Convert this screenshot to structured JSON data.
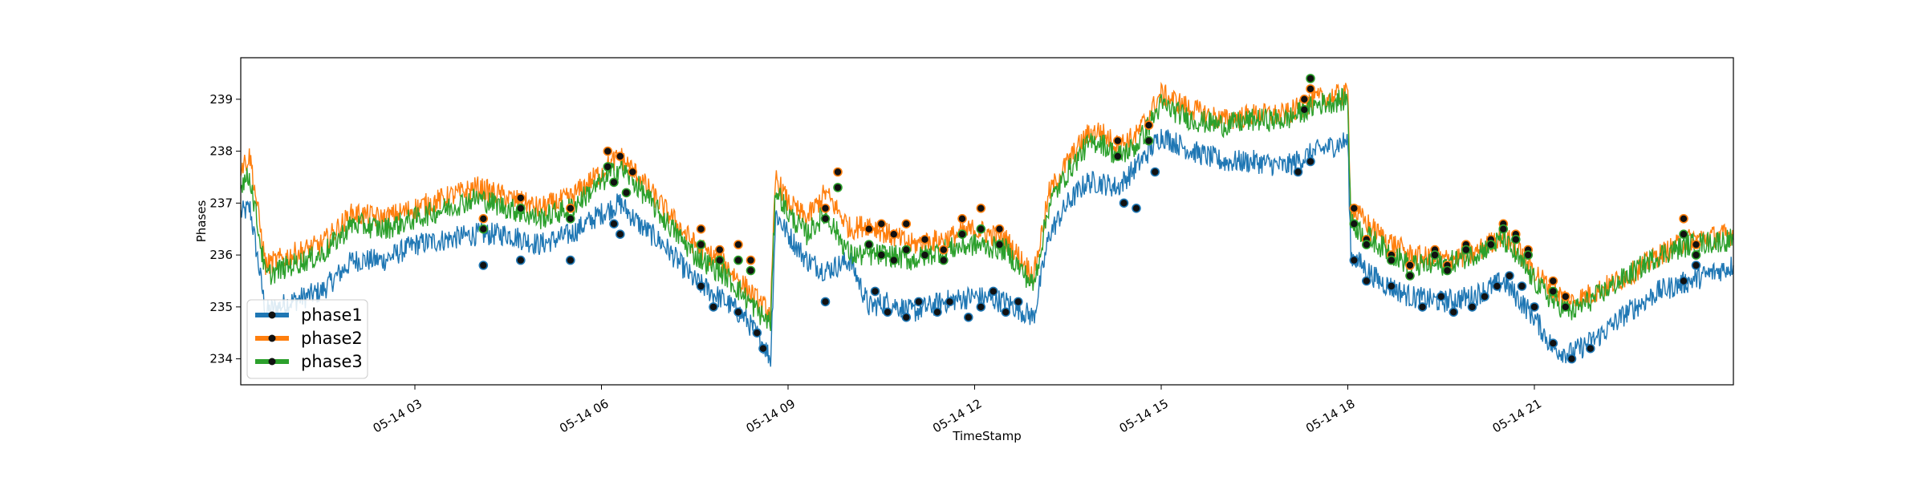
{
  "chart_data": {
    "type": "line",
    "xlabel": "TimeStamp",
    "ylabel": "Phases",
    "xlim": [
      0.2,
      24.2
    ],
    "ylim": [
      233.5,
      239.8
    ],
    "x_unit": "hour of 05-14",
    "x_ticks": [
      {
        "value": 3,
        "label": "05-14 03"
      },
      {
        "value": 6,
        "label": "05-14 06"
      },
      {
        "value": 9,
        "label": "05-14 09"
      },
      {
        "value": 12,
        "label": "05-14 12"
      },
      {
        "value": 15,
        "label": "05-14 15"
      },
      {
        "value": 18,
        "label": "05-14 18"
      },
      {
        "value": 21,
        "label": "05-14 21"
      }
    ],
    "y_ticks": [
      234,
      235,
      236,
      237,
      238,
      239
    ],
    "grid": false,
    "legend": {
      "position": "lower-left",
      "marker": "dot"
    },
    "series": [
      {
        "name": "phase1",
        "color": "#1f77b4",
        "points": [
          [
            0.2,
            236.8
          ],
          [
            0.35,
            236.9
          ],
          [
            0.6,
            234.9
          ],
          [
            1.0,
            235.1
          ],
          [
            1.5,
            235.3
          ],
          [
            2.0,
            235.9
          ],
          [
            2.5,
            235.9
          ],
          [
            3.0,
            236.2
          ],
          [
            3.5,
            236.3
          ],
          [
            4.0,
            236.4
          ],
          [
            4.5,
            236.4
          ],
          [
            5.0,
            236.2
          ],
          [
            5.5,
            236.4
          ],
          [
            6.0,
            236.8
          ],
          [
            6.3,
            237.0
          ],
          [
            6.6,
            236.6
          ],
          [
            7.0,
            236.2
          ],
          [
            7.5,
            235.5
          ],
          [
            8.0,
            235.1
          ],
          [
            8.3,
            234.8
          ],
          [
            8.6,
            234.3
          ],
          [
            8.72,
            234.0
          ],
          [
            8.8,
            236.8
          ],
          [
            9.0,
            236.4
          ],
          [
            9.3,
            235.9
          ],
          [
            9.6,
            235.7
          ],
          [
            10.0,
            235.9
          ],
          [
            10.3,
            235.0
          ],
          [
            10.6,
            235.1
          ],
          [
            11.0,
            234.9
          ],
          [
            11.5,
            235.1
          ],
          [
            12.0,
            235.2
          ],
          [
            12.5,
            235.1
          ],
          [
            12.95,
            234.8
          ],
          [
            13.2,
            236.4
          ],
          [
            13.5,
            237.0
          ],
          [
            13.8,
            237.4
          ],
          [
            14.0,
            237.4
          ],
          [
            14.3,
            237.3
          ],
          [
            14.6,
            237.7
          ],
          [
            15.0,
            238.3
          ],
          [
            15.5,
            238.0
          ],
          [
            16.0,
            237.8
          ],
          [
            16.5,
            237.8
          ],
          [
            17.0,
            237.7
          ],
          [
            17.5,
            238.0
          ],
          [
            18.0,
            238.2
          ],
          [
            18.05,
            236.0
          ],
          [
            18.5,
            235.5
          ],
          [
            19.0,
            235.2
          ],
          [
            19.5,
            235.1
          ],
          [
            20.0,
            235.2
          ],
          [
            20.5,
            235.5
          ],
          [
            21.0,
            234.8
          ],
          [
            21.3,
            234.2
          ],
          [
            21.6,
            234.1
          ],
          [
            22.0,
            234.4
          ],
          [
            22.5,
            234.9
          ],
          [
            23.0,
            235.3
          ],
          [
            23.5,
            235.5
          ],
          [
            24.2,
            235.8
          ]
        ]
      },
      {
        "name": "phase2",
        "color": "#ff7f0e",
        "points": [
          [
            0.2,
            237.7
          ],
          [
            0.35,
            237.9
          ],
          [
            0.6,
            235.8
          ],
          [
            1.0,
            236.0
          ],
          [
            1.5,
            236.2
          ],
          [
            2.0,
            236.8
          ],
          [
            2.5,
            236.7
          ],
          [
            3.0,
            236.9
          ],
          [
            3.5,
            237.1
          ],
          [
            4.0,
            237.3
          ],
          [
            4.5,
            237.1
          ],
          [
            5.0,
            236.9
          ],
          [
            5.5,
            237.1
          ],
          [
            6.0,
            237.6
          ],
          [
            6.3,
            237.9
          ],
          [
            6.6,
            237.5
          ],
          [
            7.0,
            236.9
          ],
          [
            7.5,
            236.2
          ],
          [
            8.0,
            235.8
          ],
          [
            8.3,
            235.4
          ],
          [
            8.6,
            235.0
          ],
          [
            8.72,
            234.9
          ],
          [
            8.8,
            237.5
          ],
          [
            9.0,
            237.0
          ],
          [
            9.3,
            236.7
          ],
          [
            9.6,
            237.2
          ],
          [
            10.0,
            236.5
          ],
          [
            10.3,
            236.6
          ],
          [
            10.6,
            236.4
          ],
          [
            11.0,
            236.2
          ],
          [
            11.5,
            236.3
          ],
          [
            12.0,
            236.5
          ],
          [
            12.5,
            236.3
          ],
          [
            12.95,
            235.6
          ],
          [
            13.2,
            237.2
          ],
          [
            13.5,
            237.8
          ],
          [
            13.8,
            238.3
          ],
          [
            14.0,
            238.4
          ],
          [
            14.3,
            238.1
          ],
          [
            14.6,
            238.3
          ],
          [
            15.0,
            239.1
          ],
          [
            15.5,
            238.8
          ],
          [
            16.0,
            238.6
          ],
          [
            16.5,
            238.7
          ],
          [
            17.0,
            238.7
          ],
          [
            17.5,
            239.0
          ],
          [
            18.0,
            239.1
          ],
          [
            18.05,
            236.9
          ],
          [
            18.5,
            236.4
          ],
          [
            19.0,
            236.0
          ],
          [
            19.5,
            235.9
          ],
          [
            20.0,
            236.0
          ],
          [
            20.5,
            236.4
          ],
          [
            21.0,
            235.7
          ],
          [
            21.3,
            235.3
          ],
          [
            21.6,
            235.1
          ],
          [
            22.0,
            235.3
          ],
          [
            22.5,
            235.6
          ],
          [
            23.0,
            236.0
          ],
          [
            23.5,
            236.3
          ],
          [
            24.2,
            236.4
          ]
        ]
      },
      {
        "name": "phase3",
        "color": "#2ca02c",
        "points": [
          [
            0.2,
            237.4
          ],
          [
            0.35,
            237.5
          ],
          [
            0.6,
            235.6
          ],
          [
            1.0,
            235.8
          ],
          [
            1.5,
            236.0
          ],
          [
            2.0,
            236.6
          ],
          [
            2.5,
            236.5
          ],
          [
            3.0,
            236.7
          ],
          [
            3.5,
            236.9
          ],
          [
            4.0,
            237.1
          ],
          [
            4.5,
            236.9
          ],
          [
            5.0,
            236.7
          ],
          [
            5.5,
            236.9
          ],
          [
            6.0,
            237.4
          ],
          [
            6.3,
            237.7
          ],
          [
            6.6,
            237.3
          ],
          [
            7.0,
            236.7
          ],
          [
            7.5,
            236.0
          ],
          [
            8.0,
            235.6
          ],
          [
            8.3,
            235.2
          ],
          [
            8.6,
            234.8
          ],
          [
            8.72,
            234.7
          ],
          [
            8.8,
            237.3
          ],
          [
            9.0,
            236.8
          ],
          [
            9.3,
            236.4
          ],
          [
            9.6,
            236.8
          ],
          [
            10.0,
            236.0
          ],
          [
            10.3,
            236.0
          ],
          [
            10.6,
            236.0
          ],
          [
            11.0,
            235.9
          ],
          [
            11.5,
            236.1
          ],
          [
            12.0,
            236.2
          ],
          [
            12.5,
            236.1
          ],
          [
            12.95,
            235.4
          ],
          [
            13.2,
            237.0
          ],
          [
            13.5,
            237.6
          ],
          [
            13.8,
            238.1
          ],
          [
            14.0,
            238.2
          ],
          [
            14.3,
            237.9
          ],
          [
            14.6,
            238.1
          ],
          [
            15.0,
            238.9
          ],
          [
            15.5,
            238.6
          ],
          [
            16.0,
            238.5
          ],
          [
            16.5,
            238.6
          ],
          [
            17.0,
            238.6
          ],
          [
            17.5,
            238.9
          ],
          [
            18.0,
            239.0
          ],
          [
            18.05,
            236.6
          ],
          [
            18.5,
            236.2
          ],
          [
            19.0,
            235.8
          ],
          [
            19.5,
            235.8
          ],
          [
            20.0,
            236.0
          ],
          [
            20.5,
            236.3
          ],
          [
            21.0,
            235.5
          ],
          [
            21.3,
            235.1
          ],
          [
            21.6,
            234.9
          ],
          [
            22.0,
            235.2
          ],
          [
            22.5,
            235.6
          ],
          [
            23.0,
            236.0
          ],
          [
            23.5,
            236.2
          ],
          [
            24.2,
            236.3
          ]
        ]
      }
    ],
    "highlight_points": {
      "phase1": [
        [
          4.1,
          235.8
        ],
        [
          4.7,
          235.9
        ],
        [
          5.5,
          235.9
        ],
        [
          6.2,
          236.6
        ],
        [
          6.3,
          236.4
        ],
        [
          7.6,
          235.4
        ],
        [
          7.8,
          235.0
        ],
        [
          8.2,
          234.9
        ],
        [
          8.5,
          234.5
        ],
        [
          8.6,
          234.2
        ],
        [
          9.6,
          235.1
        ],
        [
          10.4,
          235.3
        ],
        [
          10.6,
          234.9
        ],
        [
          10.9,
          234.8
        ],
        [
          11.1,
          235.1
        ],
        [
          11.4,
          234.9
        ],
        [
          11.6,
          235.1
        ],
        [
          11.9,
          234.8
        ],
        [
          12.1,
          235.0
        ],
        [
          12.3,
          235.3
        ],
        [
          12.5,
          234.9
        ],
        [
          12.7,
          235.1
        ],
        [
          14.4,
          237.0
        ],
        [
          14.6,
          236.9
        ],
        [
          14.9,
          237.6
        ],
        [
          17.2,
          237.6
        ],
        [
          17.4,
          237.8
        ],
        [
          18.1,
          235.9
        ],
        [
          18.3,
          235.5
        ],
        [
          18.7,
          235.4
        ],
        [
          19.2,
          235.0
        ],
        [
          19.5,
          235.2
        ],
        [
          19.7,
          234.9
        ],
        [
          20.0,
          235.0
        ],
        [
          20.2,
          235.2
        ],
        [
          20.4,
          235.4
        ],
        [
          20.6,
          235.6
        ],
        [
          20.8,
          235.4
        ],
        [
          21.0,
          235.0
        ],
        [
          21.3,
          234.3
        ],
        [
          21.6,
          234.0
        ],
        [
          21.9,
          234.2
        ],
        [
          23.4,
          235.5
        ],
        [
          23.6,
          235.8
        ]
      ],
      "phase2": [
        [
          4.1,
          236.7
        ],
        [
          4.7,
          237.1
        ],
        [
          5.5,
          236.9
        ],
        [
          6.1,
          238.0
        ],
        [
          6.3,
          237.9
        ],
        [
          6.5,
          237.6
        ],
        [
          7.6,
          236.5
        ],
        [
          7.9,
          236.1
        ],
        [
          8.2,
          236.2
        ],
        [
          8.4,
          235.9
        ],
        [
          9.6,
          236.9
        ],
        [
          9.8,
          237.6
        ],
        [
          10.3,
          236.5
        ],
        [
          10.5,
          236.6
        ],
        [
          10.7,
          236.4
        ],
        [
          10.9,
          236.6
        ],
        [
          11.2,
          236.3
        ],
        [
          11.5,
          236.1
        ],
        [
          11.8,
          236.7
        ],
        [
          12.1,
          236.9
        ],
        [
          12.4,
          236.5
        ],
        [
          14.3,
          238.2
        ],
        [
          14.8,
          238.5
        ],
        [
          17.3,
          239.0
        ],
        [
          17.4,
          239.2
        ],
        [
          18.1,
          236.9
        ],
        [
          18.3,
          236.3
        ],
        [
          18.7,
          236.0
        ],
        [
          19.0,
          235.8
        ],
        [
          19.4,
          236.1
        ],
        [
          19.6,
          235.8
        ],
        [
          19.9,
          236.2
        ],
        [
          20.3,
          236.3
        ],
        [
          20.5,
          236.6
        ],
        [
          20.7,
          236.4
        ],
        [
          20.9,
          236.1
        ],
        [
          21.3,
          235.5
        ],
        [
          21.5,
          235.2
        ],
        [
          23.4,
          236.7
        ],
        [
          23.6,
          236.2
        ]
      ],
      "phase3": [
        [
          4.1,
          236.5
        ],
        [
          4.7,
          236.9
        ],
        [
          5.5,
          236.7
        ],
        [
          6.1,
          237.7
        ],
        [
          6.2,
          237.4
        ],
        [
          6.4,
          237.2
        ],
        [
          7.6,
          236.2
        ],
        [
          7.9,
          235.9
        ],
        [
          8.2,
          235.9
        ],
        [
          8.4,
          235.7
        ],
        [
          9.6,
          236.7
        ],
        [
          9.8,
          237.3
        ],
        [
          10.3,
          236.2
        ],
        [
          10.5,
          236.0
        ],
        [
          10.7,
          235.9
        ],
        [
          10.9,
          236.1
        ],
        [
          11.2,
          236.0
        ],
        [
          11.5,
          235.9
        ],
        [
          11.8,
          236.4
        ],
        [
          12.1,
          236.5
        ],
        [
          12.4,
          236.2
        ],
        [
          14.3,
          237.9
        ],
        [
          14.8,
          238.2
        ],
        [
          17.3,
          238.8
        ],
        [
          17.4,
          239.4
        ],
        [
          18.1,
          236.6
        ],
        [
          18.3,
          236.2
        ],
        [
          18.7,
          235.9
        ],
        [
          19.0,
          235.6
        ],
        [
          19.4,
          236.0
        ],
        [
          19.6,
          235.7
        ],
        [
          19.9,
          236.1
        ],
        [
          20.3,
          236.2
        ],
        [
          20.5,
          236.5
        ],
        [
          20.7,
          236.3
        ],
        [
          20.9,
          236.0
        ],
        [
          21.3,
          235.3
        ],
        [
          21.5,
          235.0
        ],
        [
          23.4,
          236.4
        ],
        [
          23.6,
          236.0
        ]
      ]
    }
  }
}
